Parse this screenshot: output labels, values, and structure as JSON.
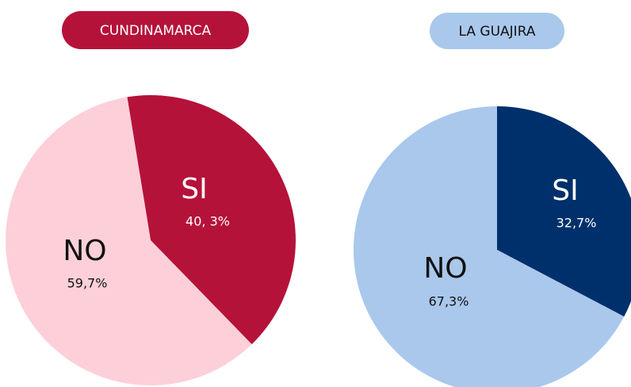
{
  "chart_data": [
    {
      "type": "pie",
      "title": "CUNDINAMARCA",
      "title_color": "#b5123a",
      "categories": [
        "SI",
        "NO"
      ],
      "values": [
        40.3,
        59.7
      ],
      "value_labels": [
        "40, 3%",
        "59,7%"
      ],
      "colors": [
        "#b5123a",
        "#fdd0d9"
      ]
    },
    {
      "type": "pie",
      "title": "LA GUAJIRA",
      "title_color": "#a9c8ec",
      "categories": [
        "SI",
        "NO"
      ],
      "values": [
        32.7,
        67.3
      ],
      "value_labels": [
        "32,7%",
        "67,3%"
      ],
      "colors": [
        "#00306b",
        "#a9c8ec"
      ]
    }
  ]
}
